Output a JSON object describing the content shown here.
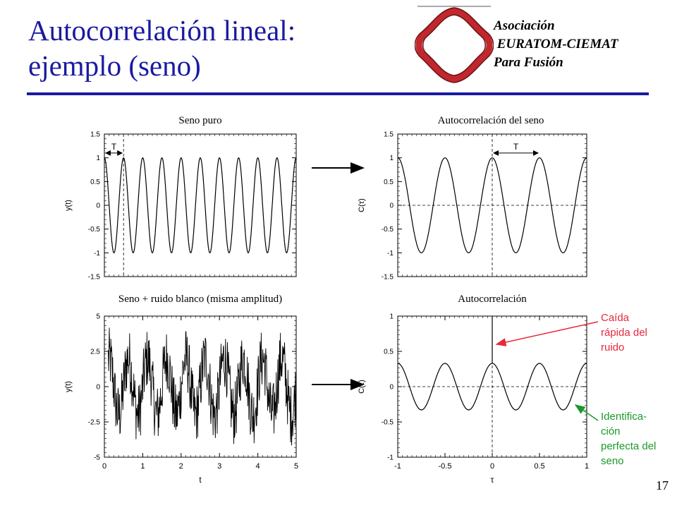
{
  "slide": {
    "title_line1": "Autocorrelación lineal:",
    "title_line2": "ejemplo (seno)",
    "org_line1": "Asociación",
    "org_line2": " EURATOM-CIEMAT",
    "org_line3": "Para Fusión",
    "page_number": "17",
    "accent_color": "#1a1aa0",
    "logo_color": "#c0282d"
  },
  "annotations": {
    "noise_drop_line1": "Caída",
    "noise_drop_line2": "rápida del",
    "noise_drop_line3": "ruido",
    "noise_drop_color": "#e8283c",
    "identification_line1": "Identifica-",
    "identification_line2": "ción",
    "identification_line3": "perfecta del",
    "identification_line4": "seno",
    "identification_color": "#1a9a2a"
  },
  "chart_data": [
    {
      "id": "sine",
      "type": "line",
      "title": "Seno puro",
      "ylabel": "y(t)",
      "xlabel": "",
      "xlim": [
        0,
        5
      ],
      "ylim": [
        -1.5,
        1.5
      ],
      "yticks": [
        "1.5",
        "1",
        "0.5",
        "0",
        "-0.5",
        "-1",
        "-1.5"
      ],
      "ytick_values": [
        1.5,
        1,
        0.5,
        0,
        -0.5,
        -1,
        -1.5
      ],
      "period_label": "T",
      "series": [
        {
          "function": "sin",
          "amplitude": 1,
          "period": 0.5,
          "phase_cycles": 0.25,
          "x_range": [
            0,
            5
          ]
        }
      ],
      "annotation": {
        "text": "T",
        "x_from": 0.0,
        "x_to": 0.5,
        "y": 1.1
      },
      "vlines": [
        {
          "x": 0.5,
          "style": "dashed"
        }
      ]
    },
    {
      "id": "sine_autocorr",
      "type": "line",
      "title": "Autocorrelación del seno",
      "ylabel": "C(τ)",
      "xlabel": "",
      "xlim": [
        -1,
        1
      ],
      "ylim": [
        -1.5,
        1.5
      ],
      "yticks": [
        "1.5",
        "1",
        "0.5",
        "0",
        "-0.5",
        "-1",
        "-1.5"
      ],
      "ytick_values": [
        1.5,
        1,
        0.5,
        0,
        -0.5,
        -1,
        -1.5
      ],
      "series": [
        {
          "function": "cos",
          "amplitude": 1,
          "period": 0.5,
          "x_range": [
            -1,
            1
          ]
        }
      ],
      "annotation": {
        "text": "T",
        "x_from": 0.0,
        "x_to": 0.5,
        "y": 1.1
      },
      "vlines": [
        {
          "x": 0,
          "style": "dashed"
        }
      ],
      "hlines": [
        {
          "y": 0,
          "style": "dashed"
        }
      ]
    },
    {
      "id": "noisy_sine",
      "type": "line",
      "title": "Seno + ruido blanco (misma amplitud)",
      "ylabel": "y(t)",
      "xlabel": "t",
      "xlim": [
        0,
        5
      ],
      "ylim": [
        -5,
        5
      ],
      "xticks": [
        "0",
        "1",
        "2",
        "3",
        "4",
        "5"
      ],
      "xtick_values": [
        0,
        1,
        2,
        3,
        4,
        5
      ],
      "yticks": [
        "5",
        "2.5",
        "0",
        "-2.5",
        "-5"
      ],
      "ytick_values": [
        5,
        2.5,
        0,
        -2.5,
        -5
      ],
      "series": [
        {
          "function": "sin+noise",
          "amplitude": 1,
          "period": 0.5,
          "noise_amplitude": 1,
          "x_range": [
            0.1,
            5
          ],
          "approx_range": [
            -4.3,
            4.2
          ]
        }
      ]
    },
    {
      "id": "noisy_autocorr",
      "type": "line",
      "title": "Autocorrelación",
      "ylabel": "C(τ)",
      "xlabel": "τ",
      "xlim": [
        -1,
        1
      ],
      "ylim": [
        -1,
        1
      ],
      "xticks": [
        "-1",
        "-0.5",
        "0",
        "0.5",
        "1"
      ],
      "xtick_values": [
        -1,
        -0.5,
        0,
        0.5,
        1
      ],
      "yticks": [
        "1",
        "0.5",
        "0",
        "-0.5",
        "-1"
      ],
      "ytick_values": [
        1,
        0.5,
        0,
        -0.5,
        -1
      ],
      "series": [
        {
          "function": "cos",
          "amplitude": 0.33,
          "period": 0.5,
          "x_range": [
            -1,
            1
          ],
          "spike_at_zero": 1
        }
      ],
      "vlines": [
        {
          "x": 0,
          "style": "dashed"
        }
      ],
      "hlines": [
        {
          "y": 0,
          "style": "dashed"
        }
      ]
    }
  ]
}
